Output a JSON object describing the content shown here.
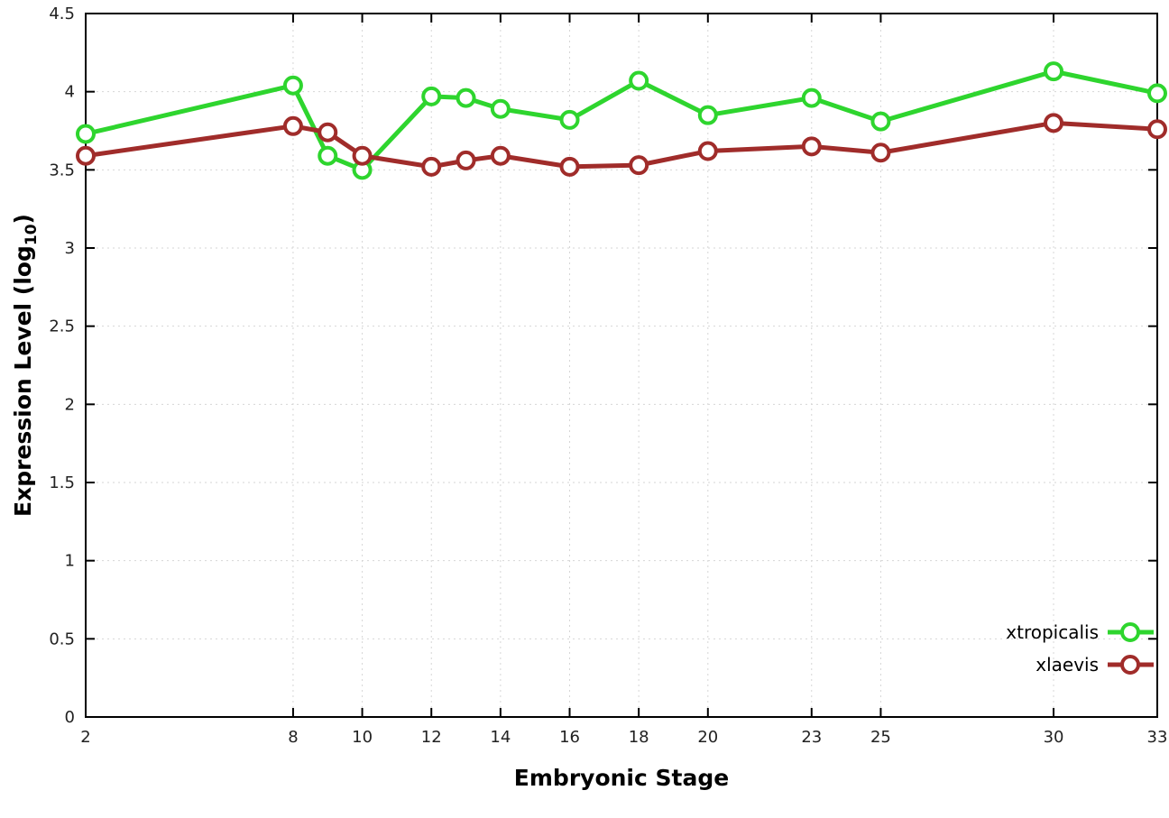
{
  "chart_data": {
    "type": "line",
    "title": "",
    "xlabel": "Embryonic Stage",
    "ylabel": "Expression Level (log10)",
    "ylabel_parts": {
      "main": "Expression Level (log",
      "sub": "10",
      "end": ")"
    },
    "xlim": [
      2,
      33
    ],
    "ylim": [
      0,
      4.5
    ],
    "x_ticks": [
      2,
      8,
      10,
      12,
      14,
      16,
      18,
      20,
      23,
      25,
      30,
      33
    ],
    "y_ticks": [
      0,
      0.5,
      1,
      1.5,
      2,
      2.5,
      3,
      3.5,
      4,
      4.5
    ],
    "grid": true,
    "legend_position": "bottom-right",
    "x": [
      2,
      8,
      9,
      10,
      12,
      13,
      14,
      16,
      18,
      20,
      23,
      25,
      30,
      33
    ],
    "series": [
      {
        "name": "xtropicalis",
        "color": "#2ed52e",
        "values": [
          3.73,
          4.04,
          3.59,
          3.5,
          3.97,
          3.96,
          3.89,
          3.82,
          4.07,
          3.85,
          3.96,
          3.81,
          4.13,
          3.99
        ]
      },
      {
        "name": "xlaevis",
        "color": "#a02c2a",
        "values": [
          3.59,
          3.78,
          3.74,
          3.59,
          3.52,
          3.56,
          3.59,
          3.52,
          3.53,
          3.62,
          3.65,
          3.61,
          3.8,
          3.76
        ]
      }
    ]
  }
}
